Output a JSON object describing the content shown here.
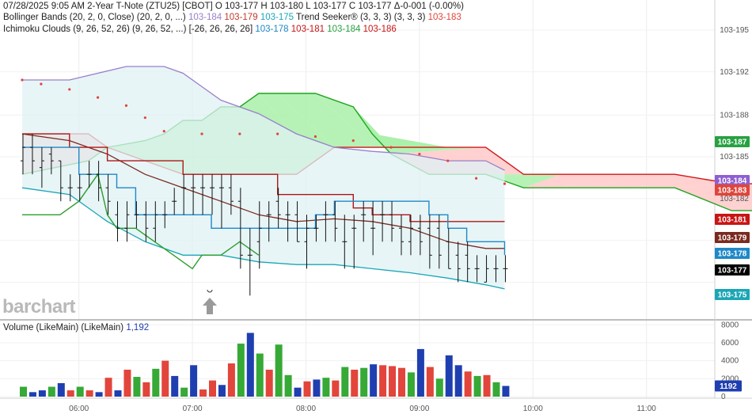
{
  "header": {
    "datetime": "07/28/2025  9:05 AM",
    "symbol": "2-Year T-Note (ZTU25) [CBOT]",
    "ohlc": "O 103-177  H 103-180  L 103-177  C 103-177  Δ-0-001 (-0.00%)"
  },
  "studies": {
    "bollinger": {
      "label": "Bollinger Bands (20, 2, 0, Close)  (20, 2, 0, ...)",
      "upper": "103-184",
      "middle": "103-179",
      "lower": "103-175"
    },
    "trend_seeker": {
      "label": "Trend Seeker® (3, 3, 3)  (3, 3, 3)",
      "value": "103-183"
    },
    "ichimoku": {
      "label": "Ichimoku Clouds (9, 26, 52, 26)  (9, 26, 52, ...) [-26, 26, 26, 26]",
      "v1": "103-178",
      "v2": "103-181",
      "v3": "103-184",
      "v4": "103-186"
    }
  },
  "volume": {
    "label": "Volume (LikeMain)  (LikeMain)",
    "value": "1,192",
    "badge": "1192"
  },
  "watermark": "barchart",
  "colors": {
    "bollinger_upper": "#9a7fc9",
    "bollinger_mid": "#7a2a1e",
    "bollinger_lower": "#1ba6b5",
    "bollinger_fill": "#dff2f4",
    "trend_seeker": "#e0453a",
    "kumo_green": "#1fa31f",
    "kumo_red": "#cf1717",
    "kumo_fill_green": "#a9f0a9",
    "kumo_fill_red": "#ffc9c9",
    "kijun": "#b01616",
    "tenkan": "#1f88c7",
    "chikou": "#2b9e2b",
    "vol_up": "#36a936",
    "vol_down": "#e2453b",
    "vol_blue": "#1f3fb0"
  },
  "price_axis": {
    "ticks": [
      "103-195",
      "103-192",
      "103-188",
      "103-185",
      "103-182"
    ],
    "badges": [
      {
        "text": "103-187",
        "color": "#27a142"
      },
      {
        "text": "103-184",
        "color": "#8f5fd0"
      },
      {
        "text": "103-183",
        "color": "#e0453a"
      },
      {
        "text": "103-181",
        "color": "#c81515"
      },
      {
        "text": "103-179",
        "color": "#7a2a1e"
      },
      {
        "text": "103-178",
        "color": "#1f88c7"
      },
      {
        "text": "103-177",
        "color": "#000000"
      },
      {
        "text": "103-175",
        "color": "#1ba6b5"
      }
    ]
  },
  "volume_axis": {
    "ticks": [
      "8000",
      "6000",
      "4000",
      "2000",
      "0"
    ]
  },
  "time_axis": {
    "ticks": [
      "06:00",
      "07:00",
      "08:00",
      "09:00",
      "10:00",
      "11:00"
    ]
  },
  "chart_data": {
    "type": "ohlc_bars_with_ichimoku_bollinger_and_volume",
    "x_unit": "minutes since 05:30 (5-minute bars)",
    "y_unit": "price in 32nds (103-XXX)",
    "price_ylim": [
      103.1735,
      103.198
    ],
    "volume_ylim": [
      0,
      8200
    ],
    "bars_open": [
      103.1855,
      103.1865,
      103.185,
      103.186,
      103.1855,
      103.1835,
      103.1835,
      103.1845,
      103.1845,
      103.1835,
      103.1815,
      103.1805,
      103.1815,
      103.1815,
      103.1805,
      103.1815,
      103.1825,
      103.1835,
      103.1835,
      103.1835,
      103.1835,
      103.1835,
      103.1835,
      103.1825,
      103.1785,
      103.1795,
      103.1815,
      103.1825,
      103.1815,
      103.1815,
      103.1795,
      103.1805,
      103.1815,
      103.1815,
      103.1795,
      103.1805,
      103.1815,
      103.1805,
      103.1815,
      103.1815,
      103.1805,
      103.1795,
      103.1805,
      103.1805,
      103.1805,
      103.1795,
      103.1785,
      103.1785,
      103.1775,
      103.1765,
      103.1775,
      103.1775
    ],
    "bars_high": [
      103.1875,
      103.1875,
      103.1865,
      103.1865,
      103.1855,
      103.1845,
      103.1845,
      103.1855,
      103.1855,
      103.1845,
      103.1825,
      103.1825,
      103.1825,
      103.1825,
      103.1825,
      103.1825,
      103.1835,
      103.1845,
      103.1845,
      103.1845,
      103.1845,
      103.1845,
      103.1845,
      103.1835,
      103.1805,
      103.1825,
      103.1825,
      103.1835,
      103.1825,
      103.1825,
      103.1815,
      103.1815,
      103.1825,
      103.1825,
      103.1815,
      103.1815,
      103.1825,
      103.1825,
      103.1825,
      103.1825,
      103.1815,
      103.1815,
      103.1815,
      103.1815,
      103.1815,
      103.1805,
      103.1795,
      103.1795,
      103.1785,
      103.1785,
      103.1785,
      103.1785
    ],
    "bars_low": [
      103.1845,
      103.1845,
      103.1835,
      103.1845,
      103.1825,
      103.1825,
      103.1825,
      103.1835,
      103.1825,
      103.1815,
      103.1795,
      103.1795,
      103.1805,
      103.1795,
      103.1795,
      103.1805,
      103.1815,
      103.1815,
      103.1815,
      103.1815,
      103.1815,
      103.1805,
      103.1815,
      103.1775,
      103.1755,
      103.1775,
      103.1795,
      103.1805,
      103.1795,
      103.1795,
      103.1775,
      103.1795,
      103.1795,
      103.1795,
      103.1775,
      103.1775,
      103.1795,
      103.1785,
      103.1795,
      103.1795,
      103.1785,
      103.1785,
      103.1785,
      103.1775,
      103.1775,
      103.1775,
      103.1765,
      103.1765,
      103.1765,
      103.1765,
      103.1765,
      103.1765
    ],
    "bars_close": [
      103.1865,
      103.1855,
      103.1855,
      103.1855,
      103.1835,
      103.1835,
      103.1835,
      103.1845,
      103.1835,
      103.1825,
      103.1805,
      103.1815,
      103.1815,
      103.1805,
      103.1815,
      103.1815,
      103.1825,
      103.1835,
      103.1835,
      103.1835,
      103.1835,
      103.1835,
      103.1825,
      103.1785,
      103.1785,
      103.1805,
      103.1815,
      103.1815,
      103.1815,
      103.1795,
      103.1805,
      103.1805,
      103.1815,
      103.1805,
      103.1795,
      103.1805,
      103.1815,
      103.1805,
      103.1815,
      103.1805,
      103.1795,
      103.1805,
      103.1795,
      103.1785,
      103.1785,
      103.1775,
      103.1775,
      103.1775,
      103.1775,
      103.1775,
      103.1775,
      103.1775
    ],
    "bollinger_upper": [
      [
        0,
        103.1915
      ],
      [
        25,
        103.1915
      ],
      [
        55,
        103.1925
      ],
      [
        75,
        103.1925
      ],
      [
        85,
        103.192
      ],
      [
        95,
        103.191
      ],
      [
        105,
        103.19
      ],
      [
        125,
        103.189
      ],
      [
        145,
        103.1875
      ],
      [
        165,
        103.1865
      ],
      [
        185,
        103.1862
      ],
      [
        205,
        103.186
      ],
      [
        225,
        103.1855
      ],
      [
        245,
        103.1855
      ],
      [
        255,
        103.1848
      ]
    ],
    "bollinger_mid": [
      [
        0,
        103.1875
      ],
      [
        25,
        103.187
      ],
      [
        45,
        103.186
      ],
      [
        65,
        103.1845
      ],
      [
        85,
        103.1835
      ],
      [
        105,
        103.1825
      ],
      [
        125,
        103.1815
      ],
      [
        145,
        103.181
      ],
      [
        165,
        103.1812
      ],
      [
        185,
        103.181
      ],
      [
        205,
        103.1805
      ],
      [
        225,
        103.1795
      ],
      [
        245,
        103.179
      ],
      [
        255,
        103.179
      ]
    ],
    "bollinger_lower": [
      [
        0,
        103.1835
      ],
      [
        25,
        103.183
      ],
      [
        45,
        103.181
      ],
      [
        65,
        103.1795
      ],
      [
        85,
        103.1785
      ],
      [
        105,
        103.1785
      ],
      [
        125,
        103.178
      ],
      [
        145,
        103.1778
      ],
      [
        165,
        103.1778
      ],
      [
        185,
        103.1775
      ],
      [
        205,
        103.1772
      ],
      [
        225,
        103.1768
      ],
      [
        245,
        103.1763
      ],
      [
        255,
        103.176
      ]
    ],
    "kumo_span_a": [
      [
        0,
        103.1845
      ],
      [
        35,
        103.1855
      ],
      [
        45,
        103.1865
      ],
      [
        65,
        103.187
      ],
      [
        75,
        103.1875
      ],
      [
        85,
        103.1885
      ],
      [
        95,
        103.1885
      ],
      [
        105,
        103.1895
      ],
      [
        115,
        103.1895
      ],
      [
        125,
        103.1905
      ],
      [
        135,
        103.1905
      ],
      [
        155,
        103.1905
      ],
      [
        175,
        103.1895
      ],
      [
        185,
        103.1875
      ],
      [
        195,
        103.186
      ],
      [
        215,
        103.1845
      ],
      [
        245,
        103.1845
      ],
      [
        265,
        103.1835
      ],
      [
        285,
        103.1835
      ],
      [
        305,
        103.1835
      ],
      [
        325,
        103.1835
      ],
      [
        345,
        103.1835
      ],
      [
        375,
        103.1818
      ],
      [
        400,
        103.1818
      ],
      [
        430,
        103.1805
      ],
      [
        455,
        103.1802
      ]
    ],
    "kumo_span_b": [
      [
        0,
        103.1875
      ],
      [
        35,
        103.1875
      ],
      [
        45,
        103.1865
      ],
      [
        65,
        103.1855
      ],
      [
        85,
        103.1845
      ],
      [
        105,
        103.1845
      ],
      [
        125,
        103.1845
      ],
      [
        135,
        103.1845
      ],
      [
        145,
        103.1845
      ],
      [
        155,
        103.1855
      ],
      [
        165,
        103.1865
      ],
      [
        185,
        103.1865
      ],
      [
        195,
        103.1865
      ],
      [
        225,
        103.1865
      ],
      [
        245,
        103.1865
      ],
      [
        255,
        103.1855
      ],
      [
        265,
        103.1845
      ],
      [
        285,
        103.1845
      ],
      [
        305,
        103.1845
      ],
      [
        325,
        103.1845
      ],
      [
        345,
        103.1845
      ],
      [
        375,
        103.1838
      ],
      [
        400,
        103.1838
      ],
      [
        430,
        103.1838
      ],
      [
        455,
        103.1838
      ]
    ],
    "kijun": [
      [
        0,
        103.1875
      ],
      [
        20,
        103.1875
      ],
      [
        25,
        103.1865
      ],
      [
        35,
        103.1865
      ],
      [
        45,
        103.1855
      ],
      [
        55,
        103.1855
      ],
      [
        65,
        103.1855
      ],
      [
        75,
        103.1855
      ],
      [
        85,
        103.1845
      ],
      [
        100,
        103.1845
      ],
      [
        115,
        103.1845
      ],
      [
        125,
        103.1845
      ],
      [
        135,
        103.183
      ],
      [
        155,
        103.183
      ],
      [
        175,
        103.182
      ],
      [
        185,
        103.1815
      ],
      [
        205,
        103.181
      ],
      [
        255,
        103.181
      ]
    ],
    "tenkan": [
      [
        0,
        103.1865
      ],
      [
        20,
        103.1865
      ],
      [
        30,
        103.1845
      ],
      [
        40,
        103.1845
      ],
      [
        50,
        103.1835
      ],
      [
        60,
        103.1815
      ],
      [
        70,
        103.1815
      ],
      [
        80,
        103.1815
      ],
      [
        90,
        103.1815
      ],
      [
        100,
        103.1805
      ],
      [
        110,
        103.1805
      ],
      [
        120,
        103.1805
      ],
      [
        130,
        103.1805
      ],
      [
        145,
        103.1805
      ],
      [
        155,
        103.1815
      ],
      [
        165,
        103.1825
      ],
      [
        185,
        103.1825
      ],
      [
        205,
        103.1825
      ],
      [
        215,
        103.1815
      ],
      [
        225,
        103.1805
      ],
      [
        235,
        103.1795
      ],
      [
        245,
        103.1795
      ],
      [
        255,
        103.1785
      ]
    ],
    "chikou": [
      [
        0,
        103.1815
      ],
      [
        20,
        103.1815
      ],
      [
        30,
        103.1825
      ],
      [
        40,
        103.1845
      ],
      [
        45,
        103.1815
      ],
      [
        50,
        103.1805
      ],
      [
        60,
        103.1805
      ],
      [
        70,
        103.1795
      ],
      [
        80,
        103.1785
      ],
      [
        90,
        103.1775
      ],
      [
        95,
        103.1785
      ],
      [
        105,
        103.1785
      ],
      [
        115,
        103.1795
      ],
      [
        125,
        103.1785
      ]
    ],
    "trend_seeker_dots": [
      [
        0,
        103.1915
      ],
      [
        10,
        103.1912
      ],
      [
        25,
        103.1908
      ],
      [
        40,
        103.1902
      ],
      [
        55,
        103.1896
      ],
      [
        65,
        103.1887
      ],
      [
        75,
        103.1877
      ],
      [
        95,
        103.1875
      ],
      [
        115,
        103.1875
      ],
      [
        135,
        103.1875
      ],
      [
        155,
        103.1873
      ],
      [
        175,
        103.187
      ],
      [
        195,
        103.1865
      ],
      [
        210,
        103.186
      ],
      [
        225,
        103.1855
      ],
      [
        240,
        103.1842
      ],
      [
        255,
        103.1838
      ]
    ],
    "volume": [
      1100,
      500,
      700,
      1100,
      1500,
      700,
      1100,
      700,
      500,
      2100,
      700,
      3000,
      2200,
      1600,
      3100,
      4000,
      2300,
      1000,
      3500,
      800,
      1800,
      1300,
      3700,
      5900,
      7100,
      4800,
      3000,
      5800,
      2400,
      1000,
      1700,
      1900,
      2100,
      1800,
      3300,
      3000,
      3200,
      3600,
      3500,
      3400,
      3200,
      2700,
      5300,
      3300,
      2000,
      4600,
      3500,
      2800,
      2300,
      2400,
      1600,
      1192
    ],
    "volume_colors": [
      "g",
      "b",
      "b",
      "g",
      "b",
      "r",
      "g",
      "r",
      "b",
      "r",
      "b",
      "r",
      "g",
      "r",
      "g",
      "r",
      "b",
      "g",
      "b",
      "r",
      "r",
      "b",
      "r",
      "g",
      "b",
      "g",
      "r",
      "g",
      "g",
      "b",
      "r",
      "b",
      "g",
      "r",
      "g",
      "r",
      "g",
      "b",
      "r",
      "r",
      "r",
      "g",
      "b",
      "r",
      "g",
      "b",
      "b",
      "r",
      "g",
      "r",
      "g",
      "b"
    ],
    "last_price": "103-177"
  }
}
